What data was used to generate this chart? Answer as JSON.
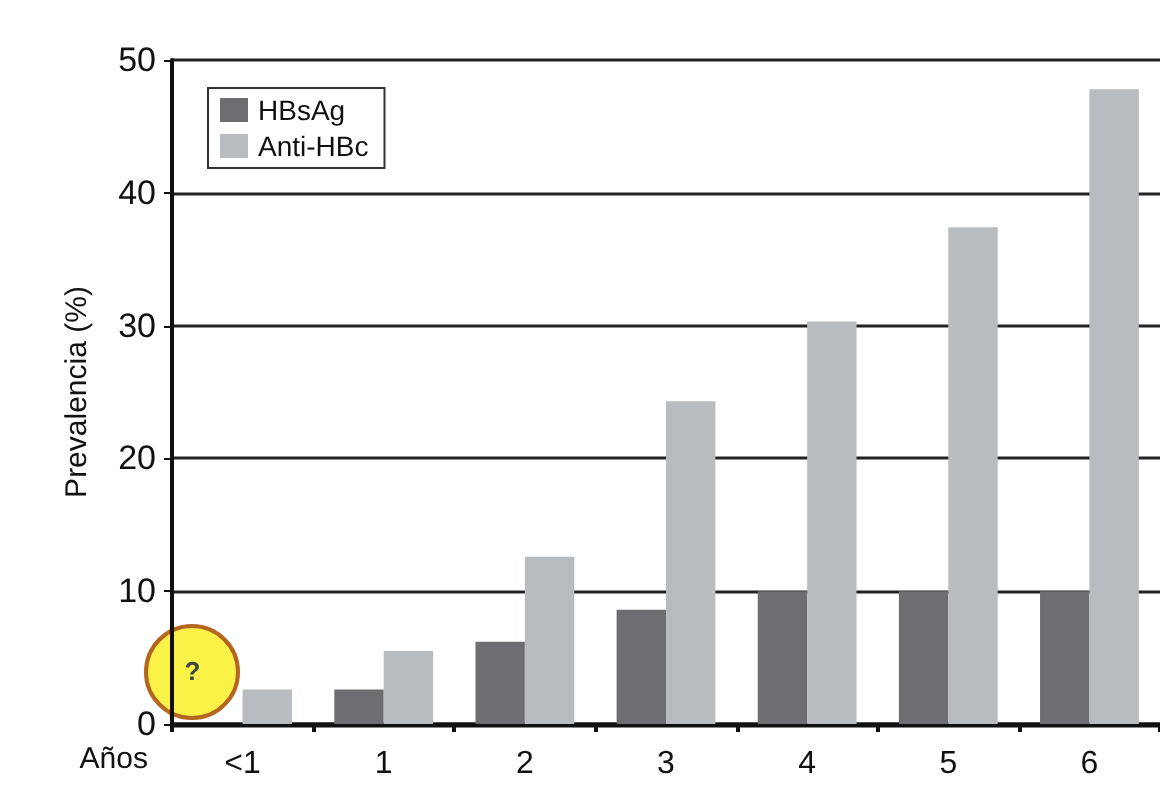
{
  "chart_data": {
    "type": "bar",
    "xlabel": "Años",
    "ylabel": "Prevalencia (%)",
    "categories": [
      "<1",
      "1",
      "2",
      "3",
      "4",
      "5",
      "6"
    ],
    "series": [
      {
        "name": "HBsAg",
        "color": "#6e6e72",
        "values": [
          null,
          2.6,
          6.2,
          8.6,
          10,
          10,
          10
        ]
      },
      {
        "name": "Anti-HBc",
        "color": "#b8bbbf",
        "values": [
          2.6,
          5.5,
          12.6,
          24.3,
          30.3,
          37.4,
          47.8
        ]
      }
    ],
    "ylim": [
      0,
      50
    ],
    "yticks": [
      0,
      10,
      20,
      30,
      40,
      50
    ],
    "grid": "y",
    "legend": "top left",
    "annotations": [
      "?"
    ]
  }
}
